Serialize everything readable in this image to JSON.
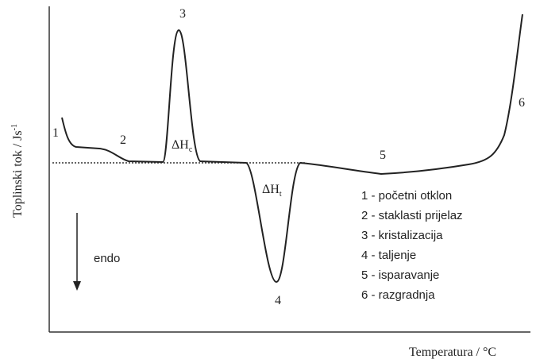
{
  "axes": {
    "y_label": {
      "text": "Toplinski tok / Js",
      "sup": "-1"
    },
    "x_label": "Temperatura / °C"
  },
  "points": [
    "1",
    "2",
    "3",
    "4",
    "5",
    "6"
  ],
  "enthalpy": [
    {
      "text": "ΔH",
      "sub": "c"
    },
    {
      "text": "ΔH",
      "sub": "t"
    }
  ],
  "direction": "endo",
  "legend": [
    "1 - početni otklon",
    "2 - staklasti prijelaz",
    "3 - kristalizacija",
    "4 - taljenje",
    "5 - isparavanje",
    "6 - razgradnja"
  ]
}
